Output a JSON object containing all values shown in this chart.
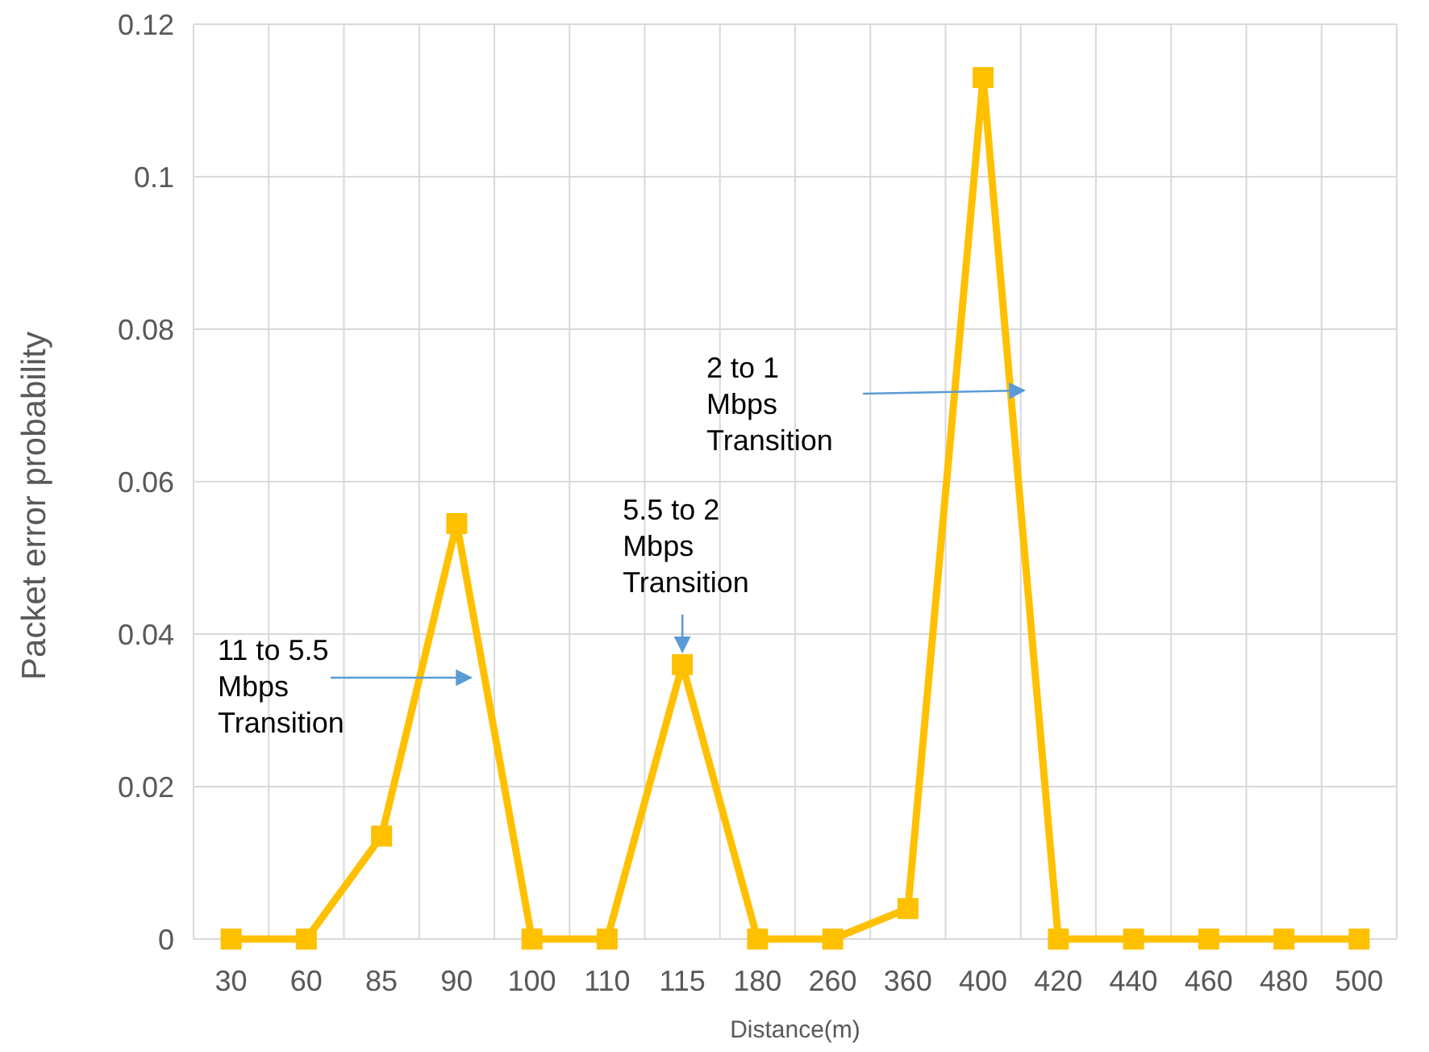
{
  "chart_data": {
    "type": "line",
    "xlabel": "Distance(m)",
    "ylabel": "Packet error probability",
    "categories": [
      "30",
      "60",
      "85",
      "90",
      "100",
      "110",
      "115",
      "180",
      "260",
      "360",
      "400",
      "420",
      "440",
      "460",
      "480",
      "500"
    ],
    "series": [
      {
        "color": "#ffc000",
        "values": [
          0,
          0,
          0.0135,
          0.0545,
          0,
          0,
          0.036,
          0,
          0,
          0.004,
          0.113,
          0,
          0,
          0,
          0,
          0
        ]
      }
    ],
    "ylim": [
      0,
      0.12
    ],
    "yticks": [
      0,
      0.02,
      0.04,
      0.06,
      0.08,
      0.1,
      0.12
    ],
    "grid": true,
    "marker": "square",
    "line_style": "solid",
    "annotations": [
      "11 to 5.5\nMbps\nTransition",
      {
        "text": "5.5 to  2\nMbps\nTransition",
        "x": "115",
        "y": 0.036
      },
      "2 to 1\nMbps\nTransition"
    ]
  }
}
